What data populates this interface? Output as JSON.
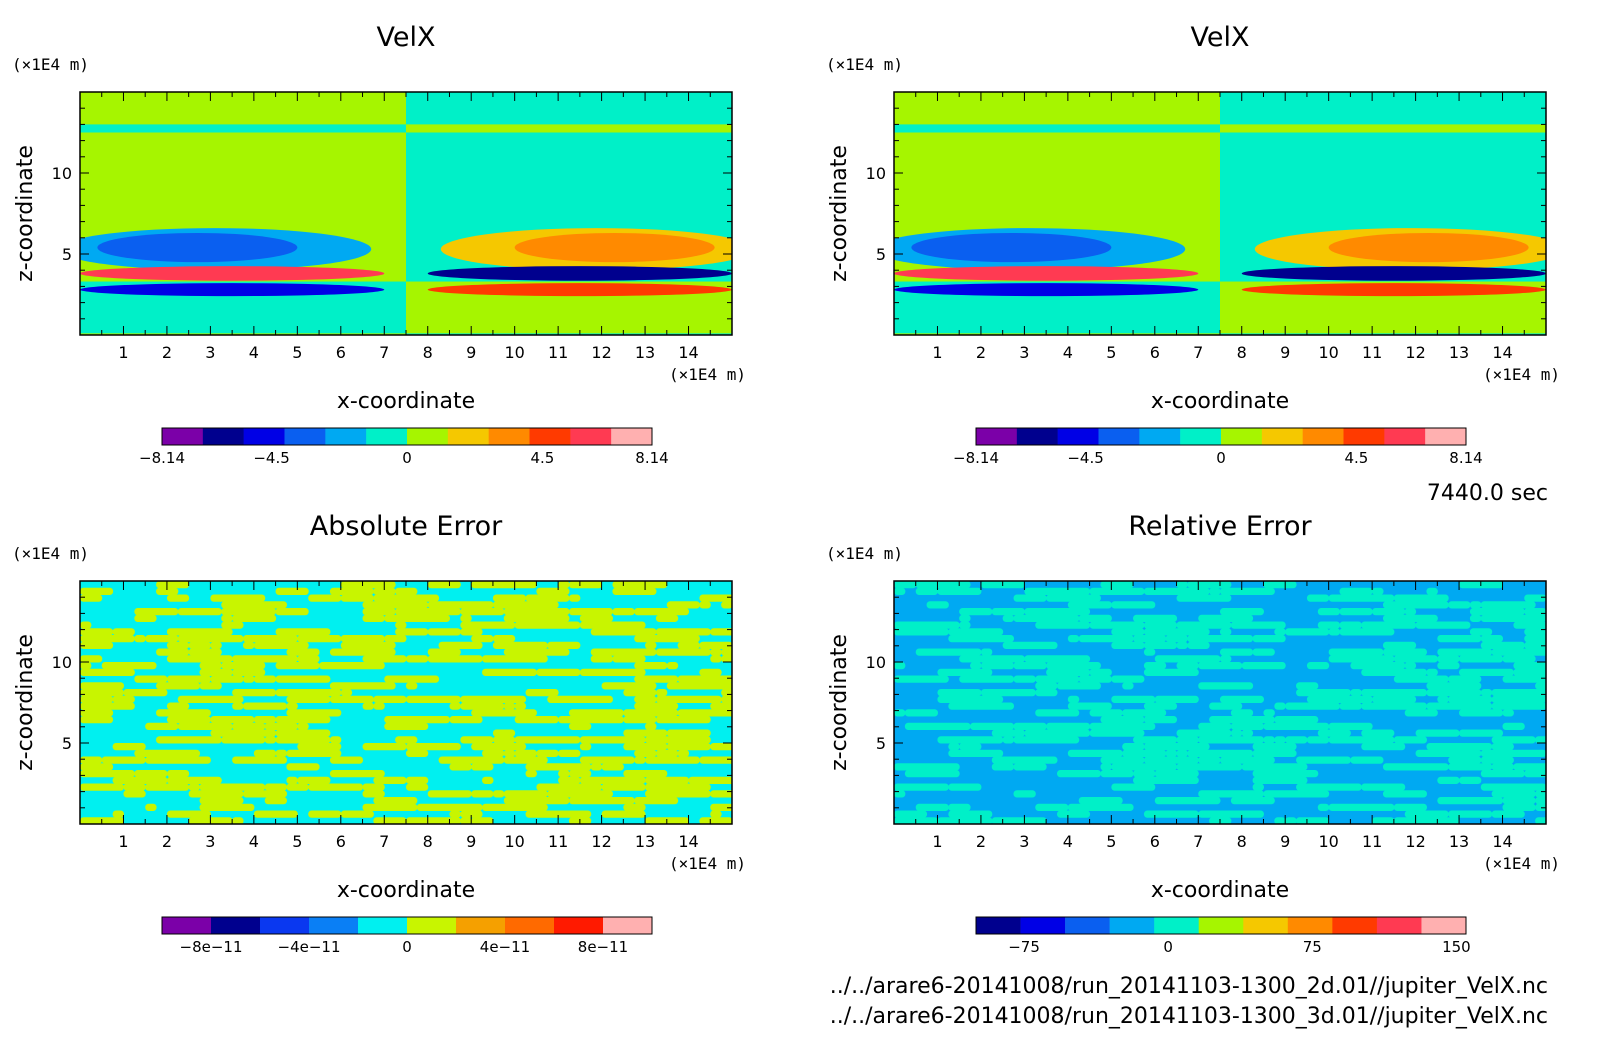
{
  "time_label": "7440.0 sec",
  "files": [
    "../../arare6-20141008/run_20141103-1300_2d.01//jupiter_VelX.nc",
    "../../arare6-20141008/run_20141103-1300_3d.01//jupiter_VelX.nc"
  ],
  "chart_data": [
    {
      "type": "heatmap",
      "title": "VelX",
      "xlabel": "x-coordinate",
      "ylabel": "z-coordinate",
      "x_unit": "(×1E4 m)",
      "y_unit": "(×1E4 m)",
      "xlim": [
        0,
        15
      ],
      "ylim": [
        0,
        15
      ],
      "xticks": [
        "1",
        "2",
        "3",
        "4",
        "5",
        "6",
        "7",
        "8",
        "9",
        "10",
        "11",
        "12",
        "13",
        "14"
      ],
      "yticks": [
        "5",
        "10"
      ],
      "colorbar": {
        "min": -8.14,
        "max": 8.14,
        "labels": [
          {
            "value": -8.14,
            "text": "−8.14"
          },
          {
            "value": -4.5,
            "text": "−4.5"
          },
          {
            "value": 0,
            "text": "0"
          },
          {
            "value": 4.5,
            "text": "4.5"
          },
          {
            "value": 8.14,
            "text": "8.14"
          }
        ],
        "colors": [
          "#7b00a8",
          "#00008e",
          "#0000e6",
          "#0a5ff0",
          "#00a9f2",
          "#00f0c8",
          "#a6f500",
          "#f5c800",
          "#ff8a00",
          "#ff3a00",
          "#ff3a52",
          "#ffb0b0"
        ]
      },
      "regions": [
        {
          "x": [
            0,
            7.5
          ],
          "z": [
            0,
            15
          ],
          "value": 0.3
        },
        {
          "x": [
            7.5,
            15
          ],
          "z": [
            0,
            15
          ],
          "value": -0.3
        },
        {
          "x": [
            0,
            7.5
          ],
          "z": [
            9.8,
            12.5
          ],
          "value": 0.3
        },
        {
          "x": [
            7.5,
            15
          ],
          "z": [
            9.8,
            12.5
          ],
          "value": -0.3
        },
        {
          "x": [
            0,
            7.5
          ],
          "z": [
            0.1,
            3.3
          ],
          "value": -0.3
        },
        {
          "x": [
            7.5,
            15
          ],
          "z": [
            0.1,
            3.3
          ],
          "value": 0.3
        },
        {
          "x": [
            0,
            7.5
          ],
          "z": [
            12.5,
            13.0
          ],
          "value": -0.3
        },
        {
          "x": [
            7.5,
            15
          ],
          "z": [
            12.5,
            13.0
          ],
          "value": 0.3
        }
      ],
      "blobs": [
        {
          "cx": 3.1,
          "cz": 5.3,
          "rx": 3.6,
          "rz": 1.3,
          "value": -1.5
        },
        {
          "cx": 2.7,
          "cz": 5.4,
          "rx": 2.3,
          "rz": 0.9,
          "value": -3.0
        },
        {
          "cx": 11.9,
          "cz": 5.3,
          "rx": 3.6,
          "rz": 1.3,
          "value": 1.5
        },
        {
          "cx": 12.3,
          "cz": 5.4,
          "rx": 2.3,
          "rz": 0.9,
          "value": 3.0
        },
        {
          "cx": 3.5,
          "cz": 3.8,
          "rx": 3.5,
          "rz": 0.45,
          "value": 6.0
        },
        {
          "cx": 3.5,
          "cz": 2.8,
          "rx": 3.5,
          "rz": 0.4,
          "value": -4.5
        },
        {
          "cx": 11.5,
          "cz": 3.8,
          "rx": 3.5,
          "rz": 0.45,
          "value": -6.0
        },
        {
          "cx": 11.5,
          "cz": 2.8,
          "rx": 3.5,
          "rz": 0.4,
          "value": 4.5
        }
      ]
    },
    {
      "type": "heatmap",
      "title": "VelX",
      "xlabel": "x-coordinate",
      "ylabel": "z-coordinate",
      "x_unit": "(×1E4 m)",
      "y_unit": "(×1E4 m)",
      "xlim": [
        0,
        15
      ],
      "ylim": [
        0,
        15
      ],
      "xticks": [
        "1",
        "2",
        "3",
        "4",
        "5",
        "6",
        "7",
        "8",
        "9",
        "10",
        "11",
        "12",
        "13",
        "14"
      ],
      "yticks": [
        "5",
        "10"
      ],
      "colorbar": {
        "min": -8.14,
        "max": 8.14,
        "labels": [
          {
            "value": -8.14,
            "text": "−8.14"
          },
          {
            "value": -4.5,
            "text": "−4.5"
          },
          {
            "value": 0,
            "text": "0"
          },
          {
            "value": 4.5,
            "text": "4.5"
          },
          {
            "value": 8.14,
            "text": "8.14"
          }
        ],
        "colors": [
          "#7b00a8",
          "#00008e",
          "#0000e6",
          "#0a5ff0",
          "#00a9f2",
          "#00f0c8",
          "#a6f500",
          "#f5c800",
          "#ff8a00",
          "#ff3a00",
          "#ff3a52",
          "#ffb0b0"
        ]
      },
      "regions": [
        {
          "x": [
            0,
            7.5
          ],
          "z": [
            0,
            15
          ],
          "value": 0.3
        },
        {
          "x": [
            7.5,
            15
          ],
          "z": [
            0,
            15
          ],
          "value": -0.3
        },
        {
          "x": [
            0,
            7.5
          ],
          "z": [
            9.8,
            12.5
          ],
          "value": 0.3
        },
        {
          "x": [
            7.5,
            15
          ],
          "z": [
            9.8,
            12.5
          ],
          "value": -0.3
        },
        {
          "x": [
            0,
            7.5
          ],
          "z": [
            0.1,
            3.3
          ],
          "value": -0.3
        },
        {
          "x": [
            7.5,
            15
          ],
          "z": [
            0.1,
            3.3
          ],
          "value": 0.3
        },
        {
          "x": [
            0,
            7.5
          ],
          "z": [
            12.5,
            13.0
          ],
          "value": -0.3
        },
        {
          "x": [
            7.5,
            15
          ],
          "z": [
            12.5,
            13.0
          ],
          "value": 0.3
        }
      ],
      "blobs": [
        {
          "cx": 3.1,
          "cz": 5.3,
          "rx": 3.6,
          "rz": 1.3,
          "value": -1.5
        },
        {
          "cx": 2.7,
          "cz": 5.4,
          "rx": 2.3,
          "rz": 0.9,
          "value": -3.0
        },
        {
          "cx": 11.9,
          "cz": 5.3,
          "rx": 3.6,
          "rz": 1.3,
          "value": 1.5
        },
        {
          "cx": 12.3,
          "cz": 5.4,
          "rx": 2.3,
          "rz": 0.9,
          "value": 3.0
        },
        {
          "cx": 3.5,
          "cz": 3.8,
          "rx": 3.5,
          "rz": 0.45,
          "value": 6.0
        },
        {
          "cx": 3.5,
          "cz": 2.8,
          "rx": 3.5,
          "rz": 0.4,
          "value": -4.5
        },
        {
          "cx": 11.5,
          "cz": 3.8,
          "rx": 3.5,
          "rz": 0.45,
          "value": -6.0
        },
        {
          "cx": 11.5,
          "cz": 2.8,
          "rx": 3.5,
          "rz": 0.4,
          "value": 4.5
        }
      ]
    },
    {
      "type": "heatmap",
      "title": "Absolute Error",
      "xlabel": "x-coordinate",
      "ylabel": "z-coordinate",
      "x_unit": "(×1E4 m)",
      "y_unit": "(×1E4 m)",
      "xlim": [
        0,
        15
      ],
      "ylim": [
        0,
        15
      ],
      "xticks": [
        "1",
        "2",
        "3",
        "4",
        "5",
        "6",
        "7",
        "8",
        "9",
        "10",
        "11",
        "12",
        "13",
        "14"
      ],
      "yticks": [
        "5",
        "10"
      ],
      "colorbar": {
        "min": -1e-10,
        "max": 1e-10,
        "labels": [
          {
            "value": -8e-11,
            "text": "−8e−11"
          },
          {
            "value": -4e-11,
            "text": "−4e−11"
          },
          {
            "value": 0,
            "text": "0"
          },
          {
            "value": 4e-11,
            "text": "4e−11"
          },
          {
            "value": 8e-11,
            "text": "8e−11"
          }
        ],
        "colors": [
          "#7b00a8",
          "#00008e",
          "#0a38f0",
          "#0a7ff5",
          "#00f0f0",
          "#c8f500",
          "#f5a000",
          "#ff6a00",
          "#ff1a00",
          "#ffb0b0"
        ]
      },
      "noise": {
        "values": [
          1e-11,
          -1e-11
        ],
        "seed": 7,
        "cols": 60,
        "rows": 36
      }
    },
    {
      "type": "heatmap",
      "title": "Relative Error",
      "xlabel": "x-coordinate",
      "ylabel": "z-coordinate",
      "x_unit": "(×1E4 m)",
      "y_unit": "(×1E4 m)",
      "xlim": [
        0,
        15
      ],
      "ylim": [
        0,
        15
      ],
      "xticks": [
        "1",
        "2",
        "3",
        "4",
        "5",
        "6",
        "7",
        "8",
        "9",
        "10",
        "11",
        "12",
        "13",
        "14"
      ],
      "yticks": [
        "5",
        "10"
      ],
      "colorbar": {
        "min": -100,
        "max": 155,
        "labels": [
          {
            "value": -75,
            "text": "−75"
          },
          {
            "value": 0,
            "text": "0"
          },
          {
            "value": 75,
            "text": "75"
          },
          {
            "value": 150,
            "text": "150"
          }
        ],
        "colors": [
          "#00008e",
          "#0000e6",
          "#0a5ff0",
          "#00a9f2",
          "#00f0c8",
          "#a6f500",
          "#f5c800",
          "#ff8a00",
          "#ff3a00",
          "#ff3a52",
          "#ffb0b0"
        ]
      },
      "noise": {
        "values": [
          10,
          -10
        ],
        "seed": 19,
        "cols": 60,
        "rows": 36
      }
    }
  ]
}
